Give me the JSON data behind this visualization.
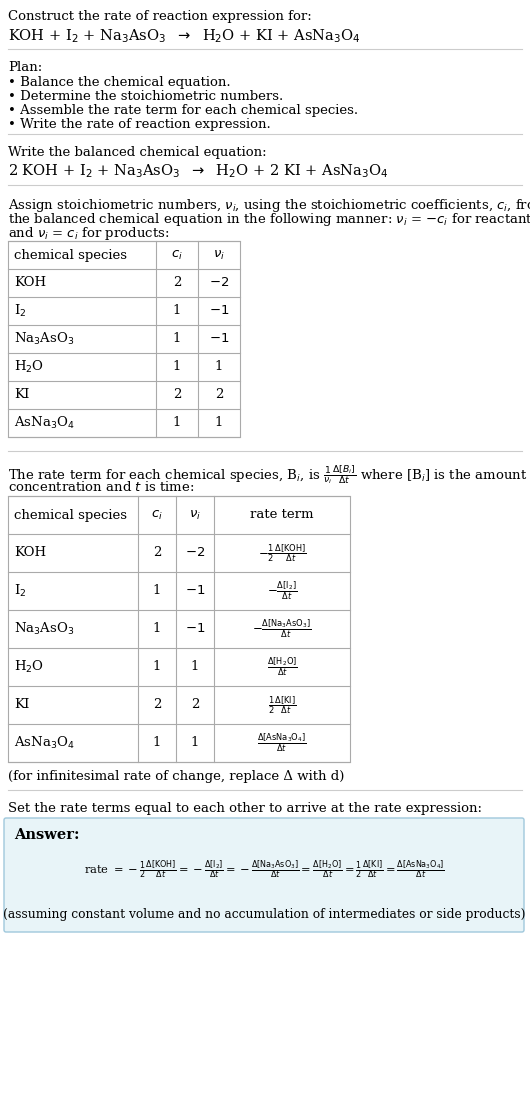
{
  "title_line1": "Construct the rate of reaction expression for:",
  "plan_header": "Plan:",
  "plan_items": [
    "• Balance the chemical equation.",
    "• Determine the stoichiometric numbers.",
    "• Assemble the rate term for each chemical species.",
    "• Write the rate of reaction expression."
  ],
  "balanced_header": "Write the balanced chemical equation:",
  "infinitesimal_note": "(for infinitesimal rate of change, replace Δ with d)",
  "set_equal_header": "Set the rate terms equal to each other to arrive at the rate expression:",
  "answer_label": "Answer:",
  "answer_note": "(assuming constant volume and no accumulation of intermediates or side products)",
  "bg_color": "#ffffff",
  "answer_box_color": "#e8f4f8",
  "answer_box_border": "#a0c8dc",
  "table_border_color": "#aaaaaa",
  "text_color": "#000000",
  "fig_width": 5.3,
  "fig_height": 11.1,
  "dpi": 100
}
